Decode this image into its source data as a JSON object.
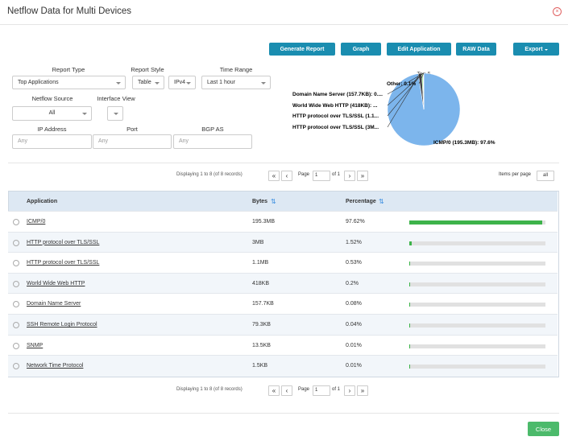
{
  "header": {
    "title": "Netflow Data for Multi Devices"
  },
  "toolbar": {
    "buttons": [
      "Generate Report",
      "Graph",
      "Edit Application",
      "RAW Data",
      "Export"
    ]
  },
  "form": {
    "report_type": {
      "label": "Report Type",
      "value": "Top Applications"
    },
    "report_style": {
      "label": "Report Style",
      "value": "Table"
    },
    "ip_version": {
      "value": "IPv4"
    },
    "time_range": {
      "label": "Time Range",
      "value": "Last 1 hour"
    },
    "netflow_source": {
      "label": "Netflow Source",
      "value": "All"
    },
    "interface_view": {
      "label": "Interface View"
    },
    "ip_address": {
      "label": "IP Address",
      "placeholder": "Any"
    },
    "port": {
      "label": "Port",
      "placeholder": "Any"
    },
    "bgp_as": {
      "label": "BGP AS",
      "placeholder": "Any"
    }
  },
  "pie": {
    "title": "Top 5",
    "slices": [
      {
        "label": "ICMP/0 (195.3MB): 97.6%",
        "value": 97.6
      },
      {
        "label": "HTTP protocol over TLS/SSL (3M...",
        "value": 1.52
      },
      {
        "label": "HTTP protocol over TLS/SSL (1.1...",
        "value": 0.53
      },
      {
        "label": "World Wide Web HTTP (418KB): ...",
        "value": 0.2
      },
      {
        "label": "Domain Name Server (157.7KB): 0....",
        "value": 0.08
      },
      {
        "label": "Other: 0.1%",
        "value": 0.1
      }
    ]
  },
  "pagination": {
    "summary": "Displaying 1 to 8 (of 8 records)",
    "page_label": "Page",
    "page": "1",
    "of": "of 1",
    "items_per_page_label": "Items per page",
    "items_per_page": "all"
  },
  "table": {
    "columns": [
      "Application",
      "Bytes",
      "Percentage"
    ],
    "rows": [
      {
        "application": "ICMP/0",
        "bytes": "195.3MB",
        "percentage": {
          "value": 97.62,
          "label": "97.62%"
        }
      },
      {
        "application": "HTTP protocol over TLS/SSL",
        "bytes": "3MB",
        "percentage": {
          "value": 1.52,
          "label": "1.52%"
        }
      },
      {
        "application": "HTTP protocol over TLS/SSL",
        "bytes": "1.1MB",
        "percentage": {
          "value": 0.53,
          "label": "0.53%"
        }
      },
      {
        "application": "World Wide Web HTTP",
        "bytes": "418KB",
        "percentage": {
          "value": 0.2,
          "label": "0.2%"
        }
      },
      {
        "application": "Domain Name Server",
        "bytes": "157.7KB",
        "percentage": {
          "value": 0.08,
          "label": "0.08%"
        }
      },
      {
        "application": "SSH Remote Login Protocol",
        "bytes": "79.3KB",
        "percentage": {
          "value": 0.04,
          "label": "0.04%"
        }
      },
      {
        "application": "SNMP",
        "bytes": "13.5KB",
        "percentage": {
          "value": 0.01,
          "label": "0.01%"
        }
      },
      {
        "application": "Network Time Protocol",
        "bytes": "1.5KB",
        "percentage": {
          "value": 0.01,
          "label": "0.01%"
        }
      }
    ]
  },
  "footer": {
    "close": "Close"
  }
}
